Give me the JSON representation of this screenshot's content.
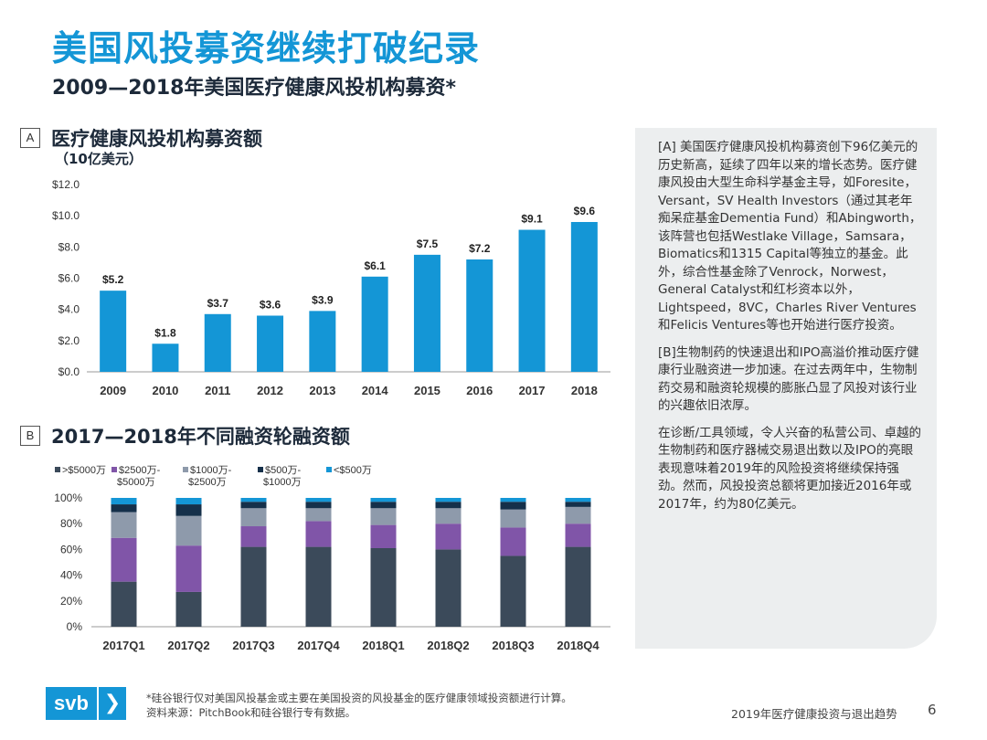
{
  "header": {
    "title": "美国风投募资继续打破纪录",
    "subtitle": "2009—2018年美国医疗健康风投机构募资*"
  },
  "section_a": {
    "letter": "A",
    "title": "医疗健康风投机构募资额",
    "unit": "（10亿美元）"
  },
  "section_b": {
    "letter": "B",
    "title": "2017—2018年不同融资轮融资额"
  },
  "chart_data": [
    {
      "type": "bar",
      "title": "医疗健康风投机构募资额",
      "ylabel": "（10亿美元）",
      "categories": [
        "2009",
        "2010",
        "2011",
        "2012",
        "2013",
        "2014",
        "2015",
        "2016",
        "2017",
        "2018"
      ],
      "values": [
        5.2,
        1.8,
        3.7,
        3.6,
        3.9,
        6.1,
        7.5,
        7.2,
        9.1,
        9.6
      ],
      "value_labels": [
        "$5.2",
        "$1.8",
        "$3.7",
        "$3.6",
        "$3.9",
        "$6.1",
        "$7.5",
        "$7.2",
        "$9.1",
        "$9.6"
      ],
      "ylim": [
        0,
        12
      ],
      "yticks": [
        0,
        2,
        4,
        6,
        8,
        10,
        12
      ],
      "ytick_labels": [
        "$0.0",
        "$2.0",
        "$4.0",
        "$6.0",
        "$8.0",
        "$10.0",
        "$12.0"
      ],
      "color": "#1496d6",
      "grid": false
    },
    {
      "type": "bar",
      "stacked": true,
      "title": "2017—2018年不同融资轮融资额",
      "categories": [
        "2017Q1",
        "2017Q2",
        "2017Q3",
        "2017Q4",
        "2018Q1",
        "2018Q2",
        "2018Q3",
        "2018Q4"
      ],
      "ylim": [
        0,
        100
      ],
      "yticks": [
        0,
        20,
        40,
        60,
        80,
        100
      ],
      "ytick_labels": [
        "0%",
        "20%",
        "40%",
        "60%",
        "80%",
        "100%"
      ],
      "legend_position": "top",
      "series": [
        {
          "name": ">$5000万",
          "color": "#3b4a5a",
          "values": [
            35,
            27,
            62,
            62,
            61,
            60,
            55,
            62
          ]
        },
        {
          "name": "$2500万-$5000万",
          "color": "#8055a8",
          "values": [
            34,
            36,
            16,
            20,
            18,
            20,
            22,
            18
          ]
        },
        {
          "name": "$1000万-$2500万",
          "color": "#8e9aab",
          "values": [
            20,
            23,
            14,
            10,
            13,
            12,
            14,
            13
          ]
        },
        {
          "name": "$500万-$1000万",
          "color": "#15304a",
          "values": [
            6,
            9,
            5,
            5,
            5,
            5,
            6,
            4
          ]
        },
        {
          "name": "<$500万",
          "color": "#1496d6",
          "values": [
            5,
            5,
            3,
            3,
            3,
            3,
            3,
            3
          ]
        }
      ]
    }
  ],
  "side_panel": {
    "p1": "[A] 美国医疗健康风投机构募资创下96亿美元的历史新高，延续了四年以来的增长态势。医疗健康风投由大型生命科学基金主导，如Foresite，Versant，SV Health Investors（通过其老年痴呆症基金Dementia Fund）和Abingworth，该阵营也包括Westlake Village，Samsara，Biomatics和1315 Capital等独立的基金。此外，综合性基金除了Venrock，Norwest，General Catalyst和红杉资本以外，Lightspeed，8VC，Charles River Ventures和Felicis Ventures等也开始进行医疗投资。",
    "p2": "[B]生物制药的快速退出和IPO高溢价推动医疗健康行业融资进一步加速。在过去两年中，生物制药交易和融资轮规模的膨胀凸显了风投对该行业的兴趣依旧浓厚。",
    "p3": "在诊断/工具领域，令人兴奋的私营公司、卓越的生物制药和医疗器械交易退出数以及IPO的亮眼表现意味着2019年的风险投资将继续保持强劲。然而，风投投资总额将更加接近2016年或2017年，约为80亿美元。"
  },
  "footer": {
    "logo_text": "svb",
    "logo_icon": "chevron-right-icon",
    "note1": "*硅谷银行仅对美国风投基金或主要在美国投资的风投基金的医疗健康领域投资额进行计算。",
    "note2": "资料来源：PitchBook和硅谷银行专有数据。",
    "report_title": "2019年医疗健康投资与退出趋势",
    "page": "6"
  }
}
